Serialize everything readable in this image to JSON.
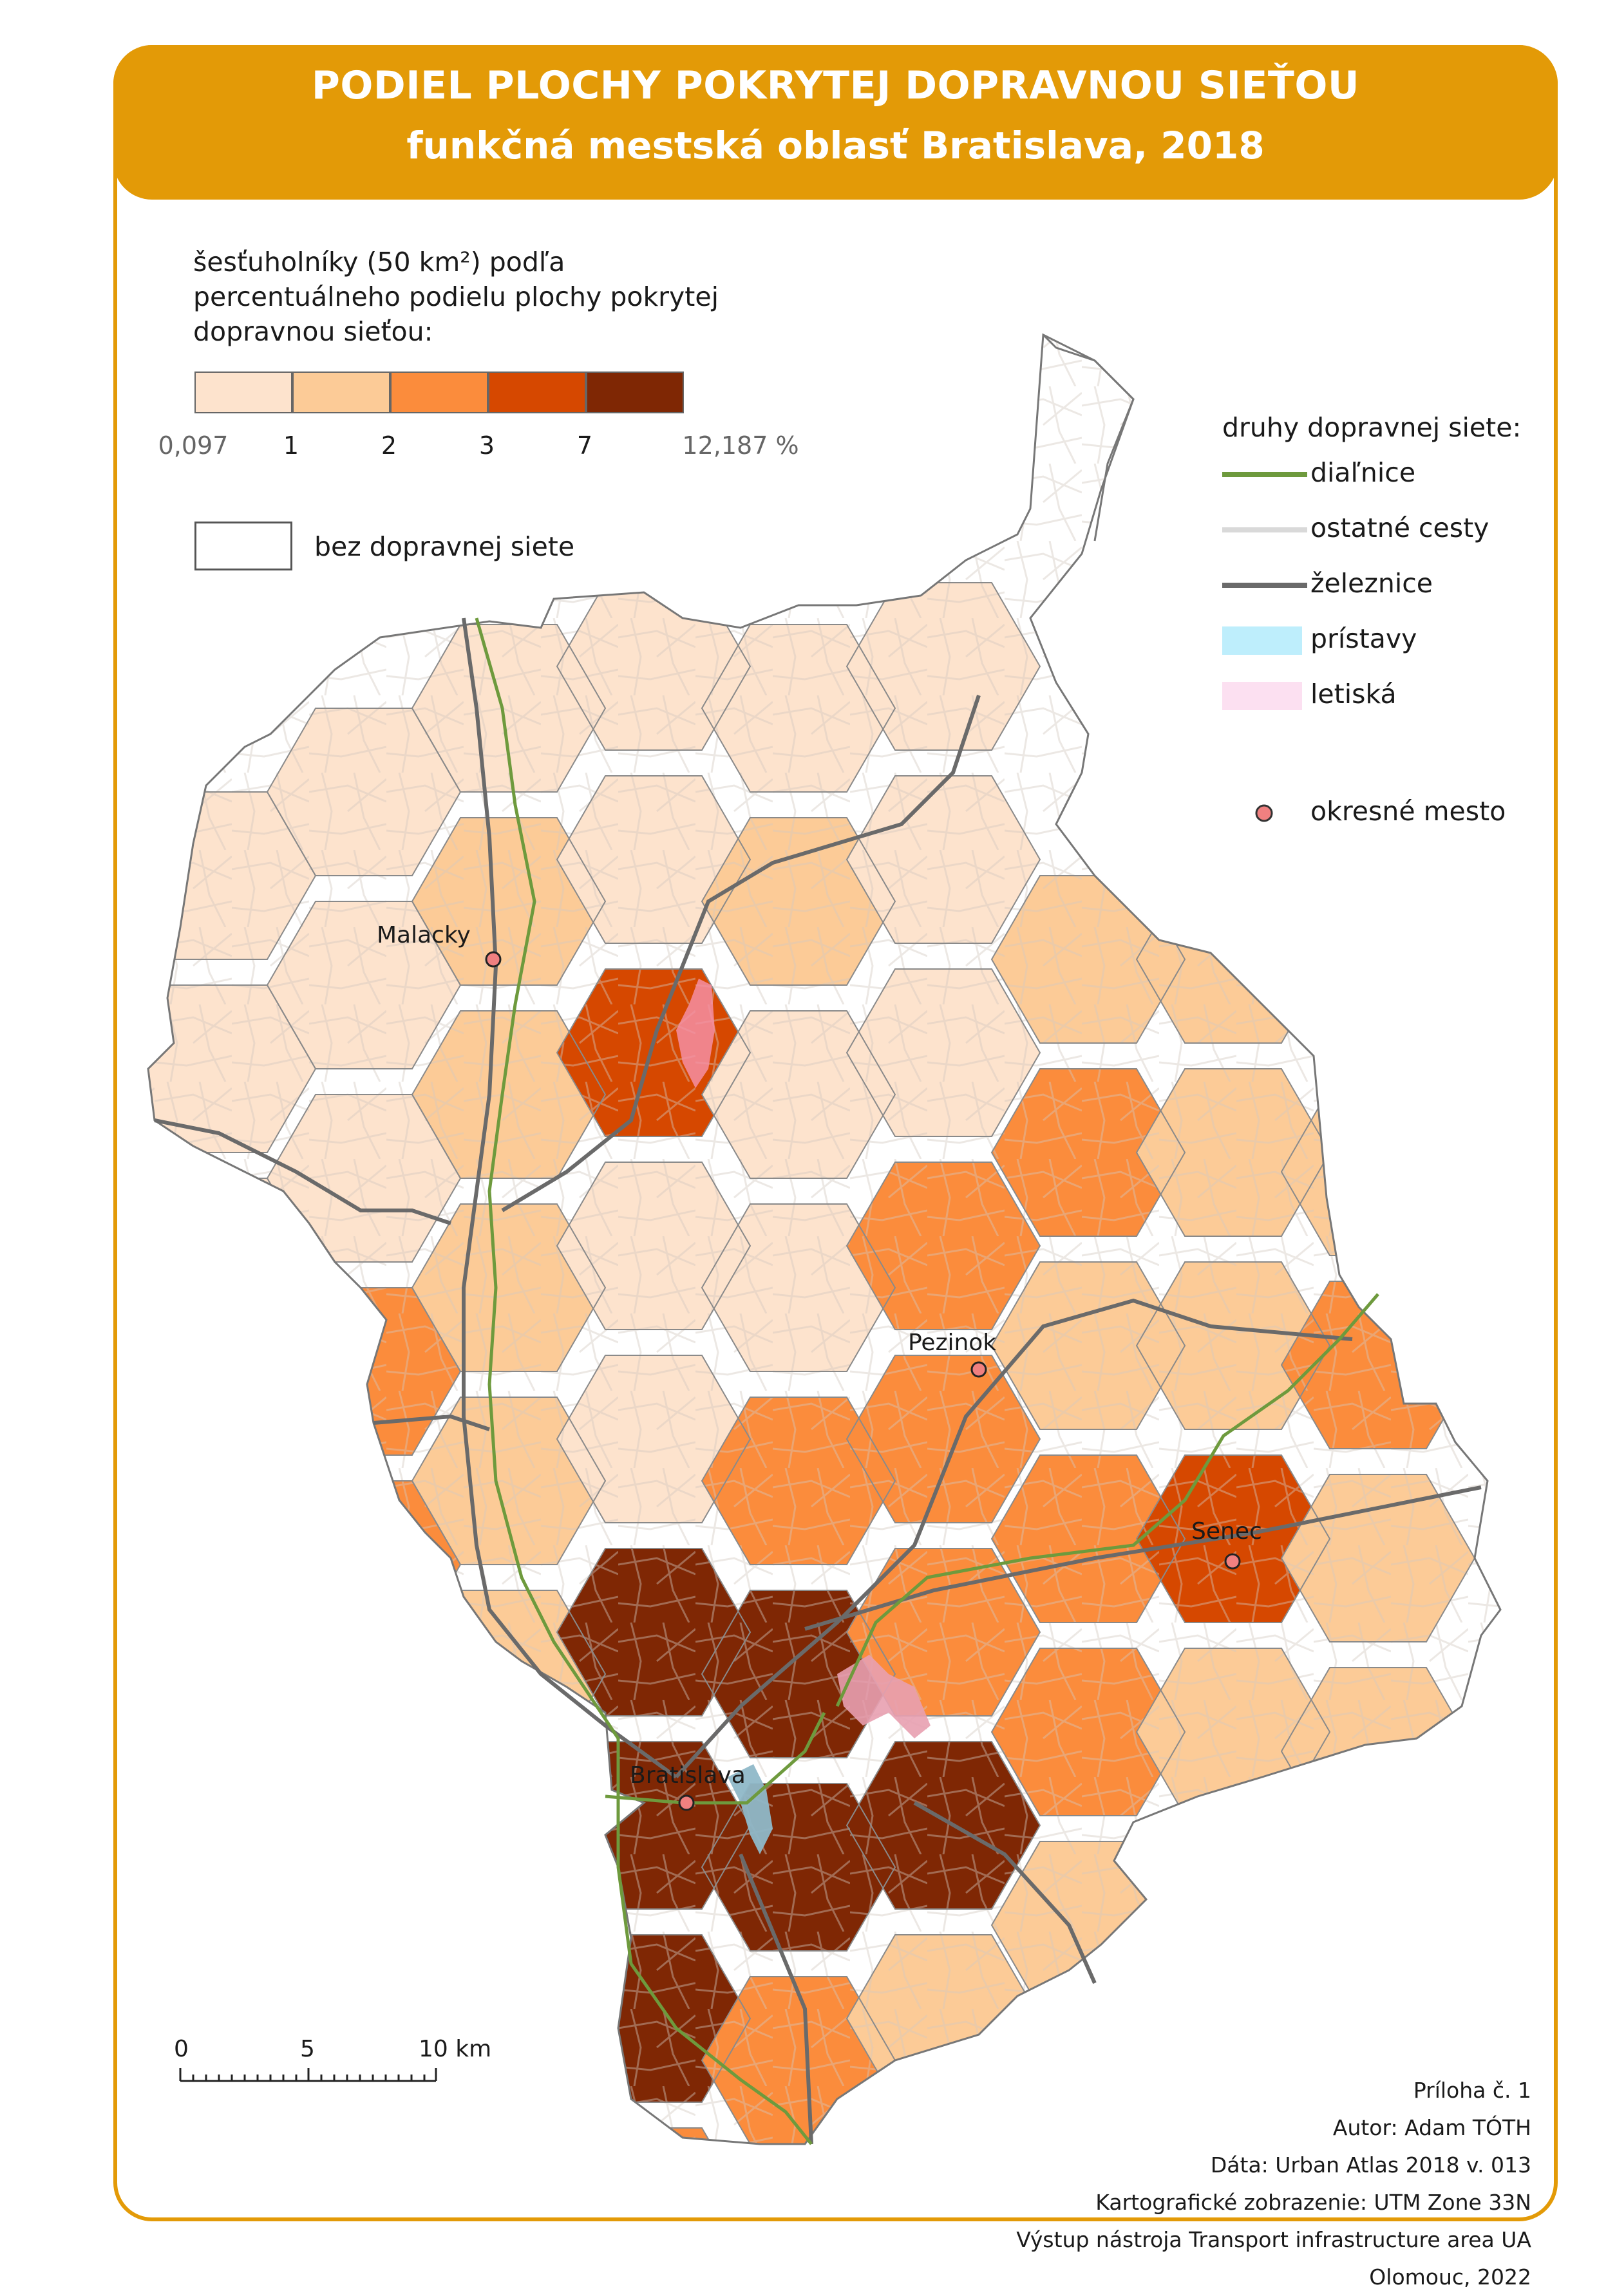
{
  "title": "PODIEL PLOCHY POKRYTEJ DOPRAVNOU SIEŤOU",
  "subtitle": "funkčná mestská oblasť Bratislava, 2018",
  "legend": {
    "heading": "šesťuholníky (50 km²) podľa percentuálneho podielu plochy pokrytej dopravnou sieťou:",
    "classes": [
      {
        "color": "#FDE3CD"
      },
      {
        "color": "#FCCB97"
      },
      {
        "color": "#FB8C3C"
      },
      {
        "color": "#D64800"
      },
      {
        "color": "#7F2704"
      }
    ],
    "breaks": [
      {
        "label": "0,097",
        "grey": true
      },
      {
        "label": "1",
        "grey": false
      },
      {
        "label": "2",
        "grey": false
      },
      {
        "label": "3",
        "grey": false
      },
      {
        "label": "7",
        "grey": false
      },
      {
        "label": "12,187 %",
        "grey": true
      }
    ],
    "nodata_label": "bez dopravnej siete"
  },
  "network_legend": {
    "heading": "druhy dopravnej siete:",
    "items": [
      {
        "label": "diaľnice",
        "color": "#6E9A3D",
        "kind": "line"
      },
      {
        "label": "ostatné cesty",
        "color": "#D9D9D9",
        "kind": "line"
      },
      {
        "label": "železnice",
        "color": "#6A6A6A",
        "kind": "line"
      },
      {
        "label": "prístavy",
        "color": "#BEEEFC",
        "kind": "area"
      },
      {
        "label": "letiská",
        "color": "#FCE0F1",
        "kind": "area"
      },
      {
        "label": "okresné mesto",
        "color": "#F08080",
        "kind": "point"
      }
    ]
  },
  "cities": [
    {
      "name": "Malacky"
    },
    {
      "name": "Pezinok"
    },
    {
      "name": "Senec"
    },
    {
      "name": "Bratislava"
    }
  ],
  "scale_bar": {
    "labels": [
      "0",
      "5",
      "10 km"
    ]
  },
  "info": [
    "Príloha č. 1",
    "Autor: Adam TÓTH",
    "Dáta: Urban Atlas 2018 v. 013",
    "Kartografické zobrazenie: UTM Zone 33N",
    "Výstup nástroja Transport infrastructure area UA",
    "Olomouc, 2022"
  ]
}
